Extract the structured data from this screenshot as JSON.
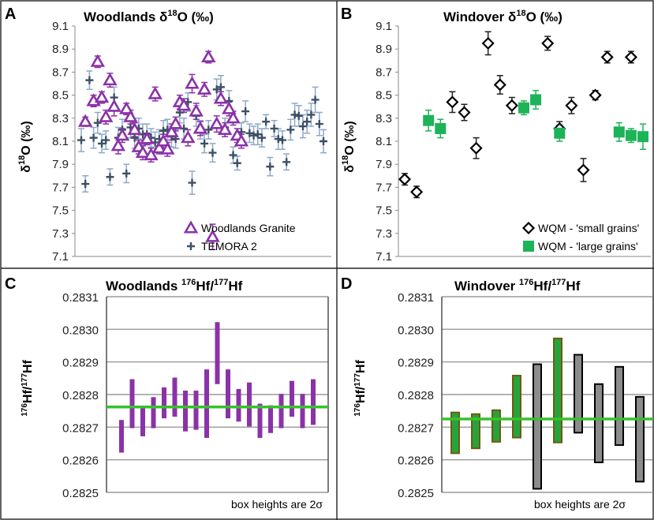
{
  "colors": {
    "woodlands": "#8b32a8",
    "temora": "#3d4f66",
    "temora_err": "#8fa9c6",
    "wqm_small": "#000000",
    "wqm_large": "#1db359",
    "hf_ref": "#35c22a",
    "windover_green_fill": "#27a33c",
    "windover_green_edge": "#6f5a12",
    "windover_gray_fill": "#8c8c8c",
    "grid": "#9a9a9a",
    "panel_border": "#222222"
  },
  "chart_data": [
    {
      "panel": "A",
      "type": "scatter",
      "title_main": "Woodlands δ",
      "title_sup": "18",
      "title_tail": "O (‰)",
      "ylabel_main": "δ",
      "ylabel_sup": "18",
      "ylabel_tail": "O (‰)",
      "ylim": [
        7.1,
        9.1
      ],
      "yticks": [
        "9.1",
        "8.9",
        "8.7",
        "8.5",
        "8.3",
        "8.1",
        "7.9",
        "7.7",
        "7.5",
        "7.3",
        "7.1"
      ],
      "grid": false,
      "legend_position": "bottom-right",
      "series": [
        {
          "name": "Woodlands Granite",
          "marker": "triangle",
          "x": [
            2,
            4,
            5,
            6,
            7,
            8,
            9,
            10,
            11,
            12,
            13,
            14,
            15,
            16,
            17,
            18,
            19,
            20,
            21,
            22,
            23,
            24,
            25,
            26,
            27,
            28,
            29,
            30,
            31,
            32,
            33,
            34,
            35,
            36,
            37,
            38,
            39,
            40
          ],
          "y": [
            8.27,
            8.45,
            8.79,
            8.48,
            8.31,
            8.63,
            8.4,
            8.06,
            8.15,
            8.38,
            8.31,
            8.2,
            8.05,
            8.0,
            8.12,
            7.98,
            8.51,
            8.04,
            8.1,
            8.03,
            8.18,
            8.25,
            8.44,
            8.41,
            8.13,
            8.6,
            8.36,
            8.21,
            8.55,
            8.83,
            7.27,
            8.25,
            8.47,
            8.2,
            8.38,
            8.3,
            8.15,
            8.1
          ],
          "err": [
            0.04,
            0.05,
            0.05,
            0.05,
            0.06,
            0.06,
            0.08,
            0.07,
            0.06,
            0.05,
            0.06,
            0.06,
            0.06,
            0.06,
            0.05,
            0.06,
            0.06,
            0.05,
            0.06,
            0.06,
            0.07,
            0.06,
            0.06,
            0.06,
            0.07,
            0.08,
            0.07,
            0.06,
            0.06,
            0.05,
            0.11,
            0.07,
            0.06,
            0.06,
            0.06,
            0.06,
            0.06,
            0.06
          ]
        },
        {
          "name": "TEMORA 2",
          "marker": "plus",
          "x": [
            1,
            2,
            3,
            4,
            5,
            6,
            7,
            8,
            9,
            10,
            11,
            12,
            13,
            14,
            15,
            16,
            17,
            18,
            19,
            20,
            21,
            22,
            23,
            24,
            25,
            26,
            27,
            28,
            29,
            30,
            31,
            32,
            33,
            34,
            35,
            36,
            37,
            38,
            39,
            40,
            41,
            42,
            43,
            44,
            45,
            46,
            47,
            48,
            49,
            50,
            51,
            52,
            53,
            54,
            55,
            56,
            57,
            58,
            59,
            60
          ],
          "y": [
            8.11,
            7.73,
            8.63,
            8.13,
            8.26,
            8.08,
            8.11,
            7.79,
            8.48,
            8.13,
            8.2,
            7.82,
            8.22,
            8.13,
            8.21,
            8.16,
            8.16,
            8.13,
            8.09,
            8.12,
            8.19,
            8.2,
            8.14,
            8.12,
            8.35,
            8.21,
            8.44,
            7.74,
            8.32,
            8.2,
            8.08,
            8.2,
            8.0,
            8.55,
            8.57,
            8.22,
            8.45,
            7.98,
            7.91,
            8.18,
            8.36,
            8.17,
            8.15,
            8.16,
            8.13,
            8.27,
            7.88,
            8.21,
            8.12,
            8.11,
            7.92,
            8.2,
            8.33,
            8.32,
            8.23,
            8.27,
            8.33,
            8.46,
            8.25,
            8.1
          ],
          "err": [
            0.1,
            0.07,
            0.08,
            0.09,
            0.09,
            0.08,
            0.08,
            0.07,
            0.09,
            0.09,
            0.09,
            0.08,
            0.09,
            0.09,
            0.09,
            0.09,
            0.09,
            0.08,
            0.09,
            0.08,
            0.09,
            0.09,
            0.09,
            0.08,
            0.09,
            0.09,
            0.08,
            0.1,
            0.09,
            0.08,
            0.08,
            0.08,
            0.08,
            0.09,
            0.1,
            0.08,
            0.09,
            0.07,
            0.06,
            0.08,
            0.09,
            0.08,
            0.08,
            0.09,
            0.08,
            0.06,
            0.08,
            0.07,
            0.09,
            0.08,
            0.07,
            0.09,
            0.1,
            0.09,
            0.1,
            0.1,
            0.1,
            0.11,
            0.1,
            0.1
          ]
        }
      ]
    },
    {
      "panel": "B",
      "type": "scatter",
      "title_main": "Windover δ",
      "title_sup": "18",
      "title_tail": "O (‰)",
      "ylabel_main": "δ",
      "ylabel_sup": "18",
      "ylabel_tail": "O (‰)",
      "ylim": [
        7.1,
        9.1
      ],
      "yticks": [
        "9.1",
        "8.9",
        "8.7",
        "8.5",
        "8.3",
        "8.1",
        "7.9",
        "7.7",
        "7.5",
        "7.3",
        "7.1"
      ],
      "grid": false,
      "legend_position": "bottom-right",
      "series": [
        {
          "name": "WQM - 'small grains'",
          "marker": "diamond",
          "x": [
            1,
            2,
            5,
            6,
            7,
            8,
            9,
            10,
            13,
            14,
            15,
            16,
            17,
            18,
            20
          ],
          "y": [
            7.77,
            7.66,
            8.44,
            8.35,
            8.04,
            8.95,
            8.59,
            8.41,
            8.95,
            8.21,
            8.41,
            7.85,
            8.5,
            8.83,
            8.83
          ],
          "err": [
            0.05,
            0.05,
            0.09,
            0.07,
            0.09,
            0.1,
            0.08,
            0.07,
            0.06,
            0.06,
            0.07,
            0.1,
            0.04,
            0.05,
            0.05
          ]
        },
        {
          "name": "WQM - 'large grains'",
          "marker": "square",
          "x": [
            3,
            4,
            11,
            12,
            14,
            19,
            20,
            21
          ],
          "y": [
            8.28,
            8.21,
            8.39,
            8.46,
            8.17,
            8.18,
            8.15,
            8.14
          ],
          "err": [
            0.09,
            0.08,
            0.06,
            0.08,
            0.07,
            0.08,
            0.06,
            0.11
          ]
        }
      ]
    },
    {
      "panel": "C",
      "type": "bar",
      "title_main": "Woodlands ",
      "title_sup": "176",
      "title_tail": "Hf/",
      "title_sup2": "177",
      "title_tail2": "Hf",
      "ylabel_sup": "176",
      "ylabel_mid": "Hf/",
      "ylabel_sup2": "177",
      "ylabel_tail": "Hf",
      "ylim": [
        0.2825,
        0.2831
      ],
      "yticks": [
        "0.2831",
        "0.2830",
        "0.2829",
        "0.2828",
        "0.2827",
        "0.2826",
        "0.2825"
      ],
      "grid": true,
      "reference_value": 0.282762,
      "note": "box heights are 2σ",
      "boxes": [
        {
          "low": 0.282622,
          "high": 0.282722
        },
        {
          "low": 0.282697,
          "high": 0.282847
        },
        {
          "low": 0.282672,
          "high": 0.282762
        },
        {
          "low": 0.282697,
          "high": 0.282792
        },
        {
          "low": 0.282727,
          "high": 0.282822
        },
        {
          "low": 0.282732,
          "high": 0.282852
        },
        {
          "low": 0.282687,
          "high": 0.282812
        },
        {
          "low": 0.282692,
          "high": 0.282812
        },
        {
          "low": 0.282667,
          "high": 0.282877
        },
        {
          "low": 0.282832,
          "high": 0.283022
        },
        {
          "low": 0.282727,
          "high": 0.282877
        },
        {
          "low": 0.282717,
          "high": 0.282817
        },
        {
          "low": 0.282702,
          "high": 0.282837
        },
        {
          "low": 0.282667,
          "high": 0.282772
        },
        {
          "low": 0.282682,
          "high": 0.282767
        },
        {
          "low": 0.282697,
          "high": 0.282802
        },
        {
          "low": 0.282732,
          "high": 0.282842
        },
        {
          "low": 0.282697,
          "high": 0.282802
        },
        {
          "low": 0.282707,
          "high": 0.282847
        }
      ]
    },
    {
      "panel": "D",
      "type": "bar",
      "title_main": "Windover ",
      "title_sup": "176",
      "title_tail": "Hf/",
      "title_sup2": "177",
      "title_tail2": "Hf",
      "ylabel_sup": "176",
      "ylabel_mid": "Hf/",
      "ylabel_sup2": "177",
      "ylabel_tail": "Hf",
      "ylim": [
        0.2825,
        0.2831
      ],
      "yticks": [
        "0.2831",
        "0.2830",
        "0.2829",
        "0.2828",
        "0.2827",
        "0.2826",
        "0.2825"
      ],
      "grid": true,
      "reference_value": 0.282725,
      "note": "box heights are 2σ",
      "boxes": [
        {
          "low": 0.28262,
          "high": 0.282745,
          "group": "large"
        },
        {
          "low": 0.282635,
          "high": 0.28274,
          "group": "large"
        },
        {
          "low": 0.282655,
          "high": 0.282752,
          "group": "large"
        },
        {
          "low": 0.282668,
          "high": 0.282858,
          "group": "large"
        },
        {
          "low": 0.282511,
          "high": 0.282893,
          "group": "small"
        },
        {
          "low": 0.282653,
          "high": 0.282972,
          "group": "large"
        },
        {
          "low": 0.282683,
          "high": 0.282922,
          "group": "small"
        },
        {
          "low": 0.282592,
          "high": 0.282832,
          "group": "small"
        },
        {
          "low": 0.282645,
          "high": 0.282885,
          "group": "small"
        },
        {
          "low": 0.282533,
          "high": 0.282793,
          "group": "small"
        }
      ]
    }
  ]
}
